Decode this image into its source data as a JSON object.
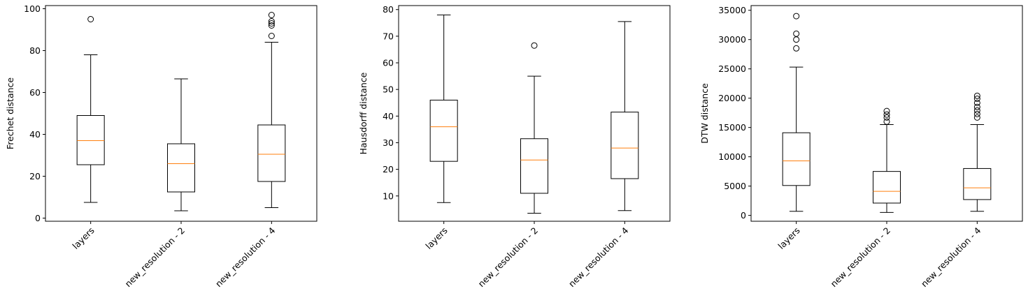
{
  "chart_data": [
    {
      "type": "boxplot",
      "ylabel": "Frechet distance",
      "ylim": [
        -1.5,
        101.5
      ],
      "yticks": [
        0,
        20,
        40,
        60,
        80,
        100
      ],
      "categories": [
        "layers",
        "new_resolution - 2",
        "new_resolution - 4"
      ],
      "median_color": "#ff7f0e",
      "boxes": [
        {
          "whislo": 7.5,
          "q1": 25.5,
          "med": 37,
          "q3": 49,
          "whishi": 78,
          "fliers": [
            95
          ]
        },
        {
          "whislo": 3.5,
          "q1": 12.5,
          "med": 26,
          "q3": 35.5,
          "whishi": 66.5,
          "fliers": []
        },
        {
          "whislo": 5,
          "q1": 17.5,
          "med": 30.5,
          "q3": 44.5,
          "whishi": 84,
          "fliers": [
            87,
            92,
            93,
            94,
            97
          ]
        }
      ]
    },
    {
      "type": "boxplot",
      "ylabel": "Hausdorff distance",
      "ylim": [
        0.5,
        81.5
      ],
      "yticks": [
        10,
        20,
        30,
        40,
        50,
        60,
        70,
        80
      ],
      "categories": [
        "layers",
        "new_resolution - 2",
        "new_resolution - 4"
      ],
      "median_color": "#ff7f0e",
      "boxes": [
        {
          "whislo": 7.5,
          "q1": 23,
          "med": 36,
          "q3": 46,
          "whishi": 78,
          "fliers": []
        },
        {
          "whislo": 3.5,
          "q1": 11,
          "med": 23.5,
          "q3": 31.5,
          "whishi": 55,
          "fliers": [
            66.5
          ]
        },
        {
          "whislo": 4.5,
          "q1": 16.5,
          "med": 28,
          "q3": 41.5,
          "whishi": 75.5,
          "fliers": []
        }
      ]
    },
    {
      "type": "boxplot",
      "ylabel": "DTW distance",
      "ylim": [
        -1000,
        35800
      ],
      "yticks": [
        0,
        5000,
        10000,
        15000,
        20000,
        25000,
        30000,
        35000
      ],
      "categories": [
        "layers",
        "new_resolution - 2",
        "new_resolution - 4"
      ],
      "median_color": "#ff7f0e",
      "boxes": [
        {
          "whislo": 700,
          "q1": 5100,
          "med": 9300,
          "q3": 14100,
          "whishi": 25300,
          "fliers": [
            28500,
            30000,
            31000,
            34000
          ]
        },
        {
          "whislo": 500,
          "q1": 2100,
          "med": 4100,
          "q3": 7500,
          "whishi": 15500,
          "fliers": [
            16000,
            16700,
            17200,
            17800
          ]
        },
        {
          "whislo": 700,
          "q1": 2700,
          "med": 4700,
          "q3": 8000,
          "whishi": 15500,
          "fliers": [
            16700,
            17300,
            17900,
            18500,
            19200,
            19900,
            20400
          ]
        }
      ]
    }
  ]
}
